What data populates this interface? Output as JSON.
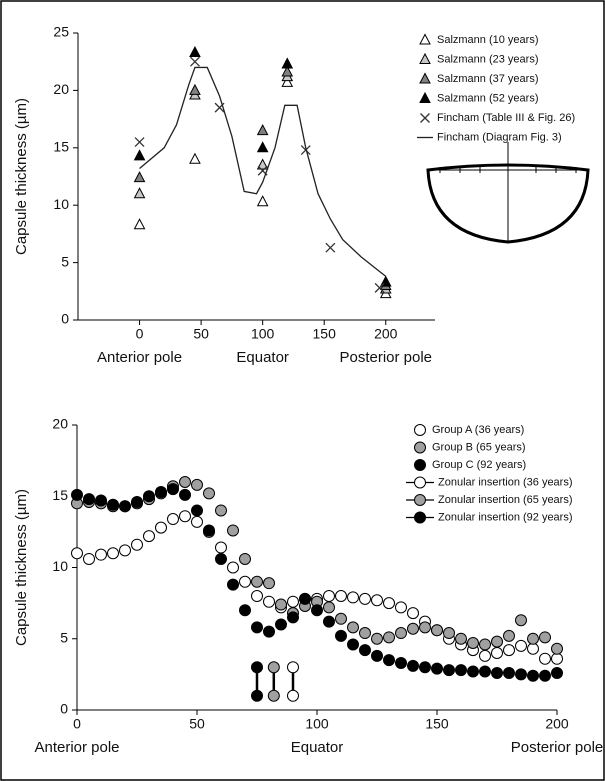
{
  "chart_data": [
    {
      "type": "scatter",
      "ylabel": "Capsule thickness (µm)",
      "xlim": [
        -50,
        240
      ],
      "xticks": [
        0,
        50,
        100,
        150,
        200
      ],
      "ylim": [
        0,
        25
      ],
      "yticks": [
        0,
        5,
        10,
        15,
        20,
        25
      ],
      "x_annotations": [
        {
          "value": 0,
          "text": "Anterior pole"
        },
        {
          "value": 100,
          "text": "Equator"
        },
        {
          "value": 200,
          "text": "Posterior pole"
        }
      ],
      "series": [
        {
          "name": "Salzmann (10 years)",
          "marker": "triangle",
          "color": "#ffffff",
          "x": [
            0,
            45,
            100,
            120,
            200
          ],
          "values": [
            8.3,
            14,
            10.3,
            20.7,
            2.3
          ]
        },
        {
          "name": "Salzmann (23 years)",
          "marker": "triangle",
          "color": "#c8c8c8",
          "x": [
            0,
            45,
            100,
            120,
            200
          ],
          "values": [
            11,
            19.6,
            13.5,
            21.2,
            2.7
          ]
        },
        {
          "name": "Salzmann (37 years)",
          "marker": "triangle",
          "color": "#808080",
          "x": [
            0,
            45,
            100,
            120,
            200
          ],
          "values": [
            12.4,
            20,
            16.5,
            21.6,
            3
          ]
        },
        {
          "name": "Salzmann (52 years)",
          "marker": "triangle",
          "color": "#000000",
          "x": [
            0,
            45,
            100,
            120,
            200
          ],
          "values": [
            14.3,
            23.3,
            15,
            22.3,
            3.3
          ]
        },
        {
          "name": "Fincham (Table III & Fig. 26)",
          "marker": "cross",
          "color": "#333333",
          "x": [
            0,
            45,
            65,
            100,
            135,
            155,
            195
          ],
          "values": [
            15.5,
            22.5,
            18.5,
            13,
            14.8,
            6.3,
            2.8
          ]
        },
        {
          "name": "Fincham (Diagram Fig. 3)",
          "marker": "line",
          "color": "#222222",
          "x": [
            0,
            20,
            30,
            40,
            45,
            55,
            65,
            75,
            85,
            95,
            100,
            110,
            118,
            128,
            135,
            145,
            155,
            165,
            180,
            200
          ],
          "values": [
            13.2,
            15,
            17,
            20.5,
            22,
            22,
            19.5,
            16,
            11.2,
            11,
            12,
            15,
            18.7,
            18.7,
            15,
            11,
            8.8,
            7,
            5.5,
            3.8
          ]
        }
      ]
    },
    {
      "type": "scatter",
      "ylabel": "Capsule thickness (µm)",
      "xlim": [
        0,
        200
      ],
      "xticks": [
        0,
        50,
        100,
        150,
        200
      ],
      "ylim": [
        0,
        20
      ],
      "yticks": [
        0,
        5,
        10,
        15,
        20
      ],
      "x_annotations": [
        {
          "value": 0,
          "text": "Anterior pole"
        },
        {
          "value": 100,
          "text": "Equator"
        },
        {
          "value": 200,
          "text": "Posterior pole"
        }
      ],
      "series": [
        {
          "name": "Group A (36 years)",
          "marker": "circle",
          "color": "#ffffff",
          "x": [
            0,
            5,
            10,
            15,
            20,
            25,
            30,
            35,
            40,
            45,
            50,
            55,
            60,
            65,
            70,
            75,
            80,
            85,
            90,
            95,
            100,
            105,
            110,
            115,
            120,
            125,
            130,
            135,
            140,
            145,
            150,
            155,
            160,
            165,
            170,
            175,
            180,
            185,
            190,
            195,
            200
          ],
          "values": [
            11,
            10.6,
            10.9,
            11,
            11.2,
            11.6,
            12.2,
            12.8,
            13.4,
            13.6,
            13.2,
            12.5,
            11.4,
            10,
            9,
            8,
            7.6,
            7.2,
            7.6,
            7.8,
            7.8,
            8,
            8,
            7.9,
            7.8,
            7.7,
            7.5,
            7.2,
            6.8,
            6.2,
            5.6,
            5,
            4.6,
            4.2,
            3.8,
            4,
            4.2,
            4.5,
            4.3,
            3.6,
            3.6
          ]
        },
        {
          "name": "Group B (65 years)",
          "marker": "circle",
          "color": "#a0a0a0",
          "x": [
            0,
            5,
            10,
            15,
            20,
            25,
            30,
            35,
            40,
            45,
            50,
            55,
            60,
            65,
            70,
            75,
            80,
            85,
            90,
            95,
            100,
            105,
            110,
            115,
            120,
            125,
            130,
            135,
            140,
            145,
            150,
            155,
            160,
            165,
            170,
            175,
            180,
            185,
            190,
            195,
            200
          ],
          "values": [
            14.5,
            14.6,
            14.5,
            14.3,
            14.3,
            14.5,
            14.8,
            15.2,
            15.7,
            16,
            15.8,
            15.2,
            14,
            12.6,
            10.6,
            9,
            8.9,
            7.4,
            6.8,
            7.3,
            7.6,
            7.2,
            6.4,
            5.8,
            5.4,
            5,
            5.1,
            5.4,
            5.7,
            5.8,
            5.6,
            5.4,
            5,
            4.7,
            4.6,
            4.8,
            5.2,
            6.3,
            5,
            5.1,
            4.3
          ]
        },
        {
          "name": "Group C (92 years)",
          "marker": "circle",
          "color": "#000000",
          "x": [
            0,
            5,
            10,
            15,
            20,
            25,
            30,
            35,
            40,
            45,
            50,
            55,
            60,
            65,
            70,
            75,
            80,
            85,
            90,
            95,
            100,
            105,
            110,
            115,
            120,
            125,
            130,
            135,
            140,
            145,
            150,
            155,
            160,
            165,
            170,
            175,
            180,
            185,
            190,
            195,
            200
          ],
          "values": [
            15.1,
            14.8,
            14.7,
            14.4,
            14.3,
            14.6,
            15,
            15.3,
            15.5,
            15.1,
            14,
            12.6,
            10.6,
            8.8,
            7,
            5.8,
            5.5,
            6,
            6.5,
            7.8,
            7,
            6.2,
            5.2,
            4.6,
            4.2,
            3.8,
            3.5,
            3.3,
            3.1,
            3,
            2.9,
            2.8,
            2.8,
            2.7,
            2.7,
            2.6,
            2.6,
            2.5,
            2.4,
            2.4,
            2.6
          ]
        },
        {
          "name": "Zonular insertion (36 years)",
          "marker": "stick",
          "color": "#ffffff",
          "x": [
            90,
            90
          ],
          "values": [
            1,
            3
          ]
        },
        {
          "name": "Zonular insertion (65 years)",
          "marker": "stick",
          "color": "#a0a0a0",
          "x": [
            82,
            82
          ],
          "values": [
            1,
            3
          ]
        },
        {
          "name": "Zonular insertion (92 years)",
          "marker": "stick",
          "color": "#000000",
          "x": [
            75,
            75
          ],
          "values": [
            1,
            3
          ]
        }
      ]
    }
  ]
}
